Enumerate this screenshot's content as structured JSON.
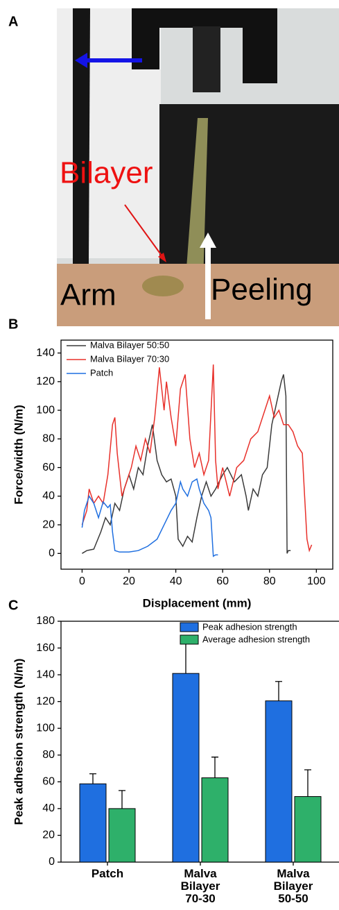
{
  "photo": {
    "panel": "A",
    "labels": [
      "Bilayer",
      "Arm",
      "Peeling"
    ]
  },
  "chart_data": [
    {
      "type": "line",
      "panel": "B",
      "x_label": "Displacement (mm)",
      "y_label": "Force/width (N/m)",
      "xlim": [
        -9,
        107
      ],
      "ylim": [
        -11,
        149
      ],
      "xticks": [
        0,
        20,
        40,
        60,
        80,
        100
      ],
      "yticks": [
        0,
        20,
        40,
        60,
        80,
        100,
        120,
        140
      ],
      "legend": "top-left",
      "series": [
        {
          "name": "Malva Bilayer 50:50",
          "color": "#3a3a3a",
          "x": [
            0,
            2,
            5,
            8,
            10,
            12,
            14,
            16,
            18,
            20,
            22,
            24,
            26,
            28,
            30,
            32,
            34,
            36,
            38,
            40,
            41,
            43,
            45,
            47,
            49,
            51,
            53,
            55,
            57,
            60,
            62,
            65,
            68,
            70,
            71,
            73,
            75,
            77,
            79,
            81,
            83,
            85,
            86,
            87,
            87.5,
            88,
            89
          ],
          "values": [
            0,
            2,
            3,
            15,
            25,
            20,
            35,
            30,
            45,
            55,
            45,
            60,
            55,
            75,
            90,
            65,
            55,
            50,
            52,
            40,
            10,
            5,
            12,
            8,
            25,
            40,
            50,
            40,
            45,
            55,
            60,
            50,
            55,
            40,
            30,
            45,
            40,
            55,
            60,
            90,
            105,
            120,
            125,
            110,
            0,
            2,
            2
          ]
        },
        {
          "name": "Malva Bilayer 70:30",
          "color": "#e8302a",
          "x": [
            0,
            2,
            3,
            5,
            7,
            9,
            11,
            13,
            14,
            15,
            17,
            19,
            21,
            23,
            25,
            27,
            29,
            31,
            33,
            35,
            36,
            38,
            40,
            42,
            44,
            46,
            48,
            50,
            52,
            54,
            56,
            57,
            58,
            60,
            63,
            66,
            69,
            72,
            75,
            78,
            80,
            82,
            84,
            86,
            88,
            90,
            92,
            94,
            95,
            96,
            97,
            98
          ],
          "values": [
            20,
            30,
            45,
            35,
            40,
            35,
            55,
            90,
            95,
            70,
            40,
            50,
            60,
            75,
            65,
            80,
            70,
            95,
            130,
            100,
            120,
            95,
            75,
            115,
            125,
            80,
            60,
            70,
            55,
            65,
            132,
            65,
            45,
            60,
            40,
            60,
            65,
            80,
            85,
            100,
            110,
            95,
            100,
            90,
            90,
            85,
            75,
            70,
            40,
            10,
            2,
            6
          ]
        },
        {
          "name": "Patch",
          "color": "#1f6fe0",
          "x": [
            0,
            1,
            3,
            5,
            7,
            9,
            11,
            12,
            13,
            14,
            16,
            20,
            24,
            28,
            32,
            35,
            38,
            40,
            42,
            43,
            45,
            47,
            49,
            50,
            52,
            54,
            55,
            56,
            57,
            58
          ],
          "values": [
            18,
            30,
            40,
            35,
            25,
            36,
            32,
            34,
            15,
            2,
            1,
            1,
            2,
            5,
            10,
            20,
            30,
            35,
            50,
            45,
            40,
            50,
            52,
            45,
            35,
            30,
            25,
            -2,
            -1,
            -1
          ]
        }
      ]
    },
    {
      "type": "bar",
      "panel": "C",
      "y_label": "Peak adhesion strength (N/m)",
      "categories": [
        "Patch",
        "Malva\nBilayer\n70-30",
        "Malva\nBilayer\n50-50"
      ],
      "ylim": [
        0,
        180
      ],
      "yticks": [
        0,
        20,
        40,
        60,
        80,
        100,
        120,
        140,
        160,
        180
      ],
      "legend": "top-right",
      "series": [
        {
          "name": "Peak adhesion strength",
          "color": "#1f6fe0",
          "values": [
            58.5,
            141,
            120.5
          ],
          "errors": [
            7.5,
            22,
            14.5
          ]
        },
        {
          "name": "Average adhesion strength",
          "color": "#2eb06a",
          "values": [
            40,
            63,
            49
          ],
          "errors": [
            13.5,
            15.5,
            20
          ]
        }
      ]
    }
  ]
}
